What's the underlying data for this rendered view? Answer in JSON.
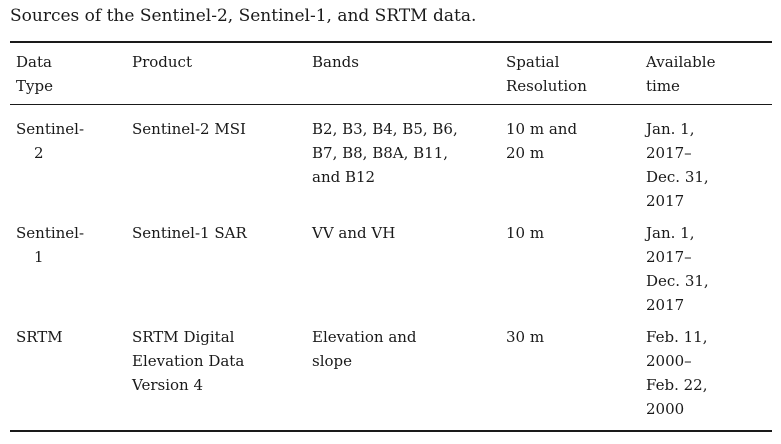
{
  "caption": "Sources of the Sentinel-2, Sentinel-1, and SRTM data.",
  "table": {
    "headers": [
      [
        "Data",
        "Type"
      ],
      [
        "Product"
      ],
      [
        "Bands"
      ],
      [
        "Spatial",
        "Resolution"
      ],
      [
        "Available",
        "time"
      ]
    ],
    "rows": [
      {
        "data_type": [
          "Sentinel-",
          "2"
        ],
        "product": [
          "Sentinel-2 MSI"
        ],
        "bands": [
          "B2, B3, B4, B5, B6,",
          "B7, B8, B8A, B11,",
          "and B12"
        ],
        "resolution": [
          "10 m and",
          "20 m"
        ],
        "time": [
          "Jan. 1,",
          "2017–",
          "Dec. 31,",
          "2017"
        ]
      },
      {
        "data_type": [
          "Sentinel-",
          "1"
        ],
        "product": [
          "Sentinel-1 SAR"
        ],
        "bands": [
          "VV and VH"
        ],
        "resolution": [
          "10 m"
        ],
        "time": [
          "Jan. 1,",
          "2017–",
          "Dec. 31,",
          "2017"
        ]
      },
      {
        "data_type": [
          "SRTM"
        ],
        "product": [
          "SRTM Digital",
          "Elevation Data",
          "Version 4"
        ],
        "bands": [
          "Elevation and",
          "slope"
        ],
        "resolution": [
          "30 m"
        ],
        "time": [
          "Feb. 11,",
          "2000–",
          "Feb. 22,",
          "2000"
        ]
      }
    ]
  }
}
